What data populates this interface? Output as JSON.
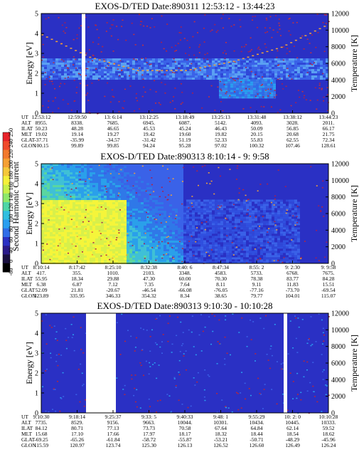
{
  "figure": {
    "panels": [
      {
        "title": "EXOS-D/TED   Date:890311   12:53:12 - 13:44:23",
        "ylabel_left": "Energy [eV]",
        "ylabel_right": "Temperature [K]",
        "ephemeris": {
          "labels": [
            "UT",
            "ALT",
            "ILAT",
            "MLT",
            "GLAT",
            "GLON"
          ],
          "columns": [
            [
              "12:53:12",
              "8955.",
              "50.23",
              "19.02",
              "-37.71",
              "100.15"
            ],
            [
              "12:59:50",
              "8338.",
              "48.28",
              "19.14",
              "-35.99",
              "99.89"
            ],
            [
              "13: 6:14",
              "7685.",
              "46.65",
              "19.27",
              "-34.57",
              "99.85"
            ],
            [
              "13:12:25",
              "6945.",
              "45.53",
              "19.42",
              "-31.42",
              "94.24"
            ],
            [
              "13:18:49",
              "6087.",
              "45.24",
              "19.60",
              "51.19",
              "95.28"
            ],
            [
              "13:25:13",
              "5142.",
              "46.43",
              "19.82",
              "52.33",
              "97.02"
            ],
            [
              "13:31:48",
              "4093.",
              "50.09",
              "20.15",
              "55.83",
              "100.32"
            ],
            [
              "13:38:12",
              "3028.",
              "56.85",
              "20.68",
              "62.55",
              "107.46"
            ],
            [
              "13:44:23",
              "2011.",
              "66.17",
              "21.75",
              "72.34",
              "128.61"
            ]
          ]
        }
      },
      {
        "title": "EXOS-D/TED   Date:890313   8:10:14 -  9: 9:58",
        "ylabel_left": "Energy [eV]",
        "ylabel_right": "Temperature [K]",
        "ephemeris": {
          "labels": [
            "UT",
            "ALT",
            "ILAT",
            "MLT",
            "GLAT",
            "GLON"
          ],
          "columns": [
            [
              "8:10:14",
              "417.",
              "55.95",
              "6.38",
              "52.09",
              "323.89"
            ],
            [
              "8:17:42",
              "355.",
              "18.34",
              "6.87",
              "21.81",
              "335.95"
            ],
            [
              "8:25:10",
              "1010.",
              "29.88",
              "7.12",
              "-20.67",
              "346.33"
            ],
            [
              "8:32:38",
              "2103.",
              "47.30",
              "7.35",
              "-46.54",
              "354.32"
            ],
            [
              "8:40: 6",
              "3348.",
              "60.00",
              "7.64",
              "-66.08",
              "8.34"
            ],
            [
              "8:47:34",
              "4583.",
              "70.30",
              "8.11",
              "-76.05",
              "38.65"
            ],
            [
              "8:55: 2",
              "5733.",
              "78.38",
              "9.11",
              "-77.16",
              "79.77"
            ],
            [
              "9: 2:30",
              "6768.",
              "83.77",
              "11.83",
              "-73.70",
              "104.01"
            ],
            [
              "9: 9:58",
              "7675.",
              "84.28",
              "15.51",
              "-69.54",
              "115.07"
            ]
          ]
        }
      },
      {
        "title": "EXOS-D/TED   Date:890313   9:10:30 - 10:10:28",
        "ylabel_left": "Energy [eV]",
        "ylabel_right": "Temperature [K]",
        "ephemeris": {
          "labels": [
            "UT",
            "ALT",
            "ILAT",
            "MLT",
            "GLAT",
            "GLON"
          ],
          "columns": [
            [
              "9:10:30",
              "7735.",
              "84.12",
              "15.68",
              "-69.25",
              "115.59"
            ],
            [
              "9:18:14",
              "8529.",
              "80.71",
              "17.10",
              "-65.26",
              "120.97"
            ],
            [
              "9:25:37",
              "9156.",
              "77.13",
              "17.66",
              "-61.84",
              "123.74"
            ],
            [
              "9:33: 5",
              "9663.",
              "73.73",
              "17.97",
              "-58.72",
              "125.30"
            ],
            [
              "9:40:33",
              "10044.",
              "70.58",
              "18.17",
              "-55.87",
              "126.13"
            ],
            [
              "9:48: 1",
              "10301.",
              "67.64",
              "18.32",
              "-53.21",
              "126.52"
            ],
            [
              "9:55:29",
              "10434.",
              "64.84",
              "18.44",
              "-50.71",
              "126.60"
            ],
            [
              "10: 2: 0",
              "10445.",
              "62.14",
              "18.54",
              "-48.29",
              "126.49"
            ],
            [
              "10:10:28",
              "10333.",
              "59.52",
              "18.62",
              "-45.96",
              "126.24"
            ]
          ]
        }
      }
    ],
    "colorbar": {
      "label": "Second Harmonic Current",
      "ticks": [
        "-60",
        "0",
        "40",
        "60",
        "80",
        "100",
        "120",
        "140",
        "160",
        "180",
        "200",
        "220",
        "240",
        "250"
      ]
    }
  },
  "chart_data": [
    {
      "type": "heatmap",
      "title": "EXOS-D/TED   Date:890311   12:53:12 - 13:44:23",
      "xlabel": "UT",
      "ylabel": "Energy [eV]",
      "y2label": "Temperature [K]",
      "x_ticks": [
        "12:53:12",
        "12:59:50",
        "13: 6:14",
        "13:12:25",
        "13:18:49",
        "13:25:13",
        "13:31:48",
        "13:38:12",
        "13:44:23"
      ],
      "y_ticks": [
        "0",
        "1",
        "2",
        "3",
        "4",
        "5"
      ],
      "y2_ticks": [
        "0",
        "2000",
        "4000",
        "6000",
        "8000",
        "10000",
        "12000"
      ],
      "ylim": [
        0,
        5
      ],
      "y2lim": [
        0,
        12000
      ],
      "data_gaps": [
        [
          12.95,
          13.0
        ]
      ],
      "features": {
        "temperature_trace_K": [
          [
            0.45,
            9500
          ],
          [
            2.5,
            6800
          ],
          [
            4.5,
            5200
          ],
          [
            6.5,
            5200
          ],
          [
            8.5,
            6300
          ],
          [
            9.5,
            8000
          ],
          [
            10.5,
            10800
          ]
        ]
      }
    },
    {
      "type": "heatmap",
      "title": "EXOS-D/TED   Date:890313   8:10:14 -  9: 9:58",
      "xlabel": "UT",
      "ylabel": "Energy [eV]",
      "y2label": "Temperature [K]",
      "x_ticks": [
        "8:10:14",
        "8:17:42",
        "8:25:10",
        "8:32:38",
        "8:40: 6",
        "8:47:34",
        "8:55: 2",
        "9: 2:30",
        "9: 9:58"
      ],
      "y_ticks": [
        "0",
        "1",
        "2",
        "3",
        "4",
        "5"
      ],
      "y2_ticks": [
        "0",
        "2000",
        "4000",
        "6000",
        "8000",
        "10000",
        "12000"
      ],
      "ylim": [
        0,
        5
      ],
      "y2lim": [
        0,
        12000
      ]
    },
    {
      "type": "heatmap",
      "title": "EXOS-D/TED   Date:890313   9:10:30 - 10:10:28",
      "xlabel": "UT",
      "ylabel": "Energy [eV]",
      "y2label": "Temperature [K]",
      "x_ticks": [
        "9:10:30",
        "9:18:14",
        "9:25:37",
        "9:33: 5",
        "9:40:33",
        "9:48: 1",
        "9:55:29",
        "10: 2: 0",
        "10:10:28"
      ],
      "y_ticks": [
        "0",
        "1",
        "2",
        "3",
        "4",
        "5"
      ],
      "y2_ticks": [
        "0",
        "2000",
        "4000",
        "6000",
        "8000",
        "10000",
        "12000"
      ],
      "ylim": [
        0,
        5
      ],
      "y2lim": [
        0,
        12000
      ]
    }
  ]
}
